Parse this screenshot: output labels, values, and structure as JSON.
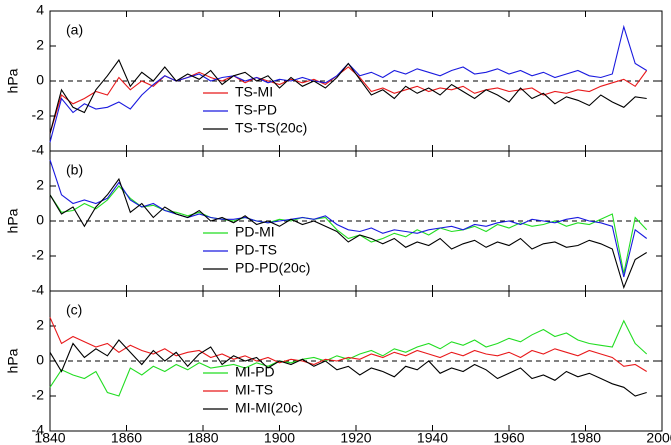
{
  "chart_data": [
    {
      "type": "line",
      "annotation": "(a)",
      "ylabel": "hPa",
      "zero_line": true,
      "x": [
        1840,
        1843,
        1846,
        1849,
        1852,
        1855,
        1858,
        1861,
        1864,
        1867,
        1870,
        1873,
        1876,
        1879,
        1882,
        1885,
        1888,
        1891,
        1894,
        1897,
        1900,
        1903,
        1906,
        1909,
        1912,
        1915,
        1918,
        1921,
        1924,
        1927,
        1930,
        1933,
        1936,
        1939,
        1942,
        1945,
        1948,
        1951,
        1954,
        1957,
        1960,
        1963,
        1966,
        1969,
        1972,
        1975,
        1978,
        1981,
        1984,
        1987,
        1990,
        1993,
        1996
      ],
      "xlim": [
        1840,
        2000
      ],
      "ylim": [
        -4,
        4
      ],
      "yticks": [
        -4,
        -2,
        0,
        2,
        4
      ],
      "series": [
        {
          "name": "TS-MI",
          "color": "#e8191b",
          "values": [
            -3,
            -0.8,
            -1.3,
            -1,
            -0.6,
            -0.8,
            0.2,
            -0.5,
            0,
            -0.3,
            0.3,
            0,
            0.2,
            0.5,
            0.2,
            0,
            0.3,
            -0.1,
            0.2,
            0,
            -0.2,
            0.1,
            -0.1,
            0.1,
            -0.2,
            0.3,
            0.8,
            0.2,
            -0.6,
            -0.4,
            -0.7,
            -0.5,
            -0.3,
            -0.6,
            -0.4,
            -0.5,
            -0.3,
            -0.7,
            -0.5,
            -0.4,
            -0.6,
            -0.5,
            -0.4,
            -0.8,
            -0.6,
            -0.7,
            -0.5,
            -0.6,
            -0.3,
            -0.1,
            0.1,
            -0.3,
            0.6
          ]
        },
        {
          "name": "TS-PD",
          "color": "#1a1adf",
          "values": [
            -3.5,
            -1,
            -1.8,
            -1.3,
            -1.6,
            -1.5,
            -1.2,
            -1.6,
            -0.8,
            -0.2,
            0.3,
            0,
            0.2,
            0.4,
            0,
            0.2,
            0.3,
            0,
            0.2,
            -0.1,
            0.1,
            0,
            0.2,
            0,
            -0.1,
            0.3,
            1,
            0.3,
            0.5,
            0.2,
            0.6,
            0.4,
            0.7,
            0.5,
            0.3,
            0.6,
            0.8,
            0.4,
            0.5,
            0.7,
            0.4,
            0.6,
            0.3,
            0.5,
            0.2,
            0.4,
            0.6,
            0.3,
            0.2,
            0.4,
            3.1,
            1,
            0.6
          ]
        },
        {
          "name": "TS-TS(20c)",
          "color": "#000000",
          "values": [
            -3,
            -0.5,
            -1.5,
            -1.8,
            -0.5,
            0.3,
            1.2,
            -0.3,
            0.5,
            0,
            0.8,
            0,
            0.4,
            0.1,
            0.6,
            -0.2,
            0.3,
            0.5,
            0,
            0.3,
            -0.4,
            0.2,
            -0.3,
            0,
            -0.4,
            0.2,
            1,
            0.1,
            -0.8,
            -0.5,
            -1,
            -0.3,
            -0.7,
            -0.4,
            -0.8,
            -0.2,
            -0.6,
            -1,
            -0.5,
            -0.8,
            -1.2,
            -0.4,
            -1,
            -0.7,
            -1.3,
            -0.9,
            -1.1,
            -1.4,
            -0.8,
            -1.2,
            -1.5,
            -0.9,
            -1
          ]
        }
      ]
    },
    {
      "type": "line",
      "annotation": "(b)",
      "ylabel": "hPa",
      "zero_line": true,
      "x": [
        1840,
        1843,
        1846,
        1849,
        1852,
        1855,
        1858,
        1861,
        1864,
        1867,
        1870,
        1873,
        1876,
        1879,
        1882,
        1885,
        1888,
        1891,
        1894,
        1897,
        1900,
        1903,
        1906,
        1909,
        1912,
        1915,
        1918,
        1921,
        1924,
        1927,
        1930,
        1933,
        1936,
        1939,
        1942,
        1945,
        1948,
        1951,
        1954,
        1957,
        1960,
        1963,
        1966,
        1969,
        1972,
        1975,
        1978,
        1981,
        1984,
        1987,
        1990,
        1993,
        1996
      ],
      "xlim": [
        1840,
        2000
      ],
      "ylim": [
        -4,
        4
      ],
      "yticks": [
        -4,
        -2,
        0,
        2
      ],
      "series": [
        {
          "name": "PD-MI",
          "color": "#22dd22",
          "values": [
            1.5,
            0.5,
            0.6,
            1,
            0.7,
            1.2,
            2,
            1.3,
            0.8,
            0.9,
            0.6,
            0.5,
            0.3,
            0.5,
            0.2,
            0.1,
            0,
            0.2,
            0,
            -0.1,
            0.1,
            0,
            0.2,
            0.1,
            0.2,
            -0.5,
            -1,
            -0.8,
            -1.2,
            -1,
            -0.7,
            -0.9,
            -0.5,
            -0.8,
            -0.4,
            -0.6,
            -0.5,
            -0.3,
            -0.6,
            -0.2,
            -0.4,
            -0.1,
            -0.3,
            -0.2,
            0,
            -0.3,
            -0.1,
            -0.2,
            0.1,
            0.4,
            -3,
            0.2,
            -0.5
          ]
        },
        {
          "name": "PD-TS",
          "color": "#1a1adf",
          "values": [
            3.5,
            1.5,
            1,
            1.2,
            1,
            1.3,
            2.2,
            1.2,
            0.8,
            1,
            0.6,
            0.4,
            0.2,
            0.4,
            0.2,
            0.1,
            0.1,
            0.2,
            0,
            -0.1,
            0,
            0.1,
            0.2,
            0.1,
            0.3,
            -0.2,
            -0.5,
            -0.6,
            -0.4,
            -0.7,
            -0.5,
            -0.6,
            -0.7,
            -0.5,
            -0.4,
            -0.3,
            -0.5,
            -0.2,
            -0.3,
            -0.1,
            0,
            -0.2,
            0.1,
            0,
            -0.1,
            0.1,
            0.2,
            0,
            -0.1,
            -0.3,
            -3.2,
            -0.5,
            -1
          ]
        },
        {
          "name": "PD-PD(20c)",
          "color": "#000000",
          "values": [
            1.5,
            0.4,
            0.8,
            -0.3,
            0.8,
            1.5,
            2.4,
            0.5,
            1,
            0.2,
            0.8,
            0.4,
            0.2,
            0.6,
            0,
            0.2,
            -0.1,
            0.3,
            -0.2,
            0,
            -0.3,
            0.1,
            -0.2,
            0,
            -0.3,
            -0.6,
            -1.2,
            -0.8,
            -1,
            -1.3,
            -1,
            -1.5,
            -1.2,
            -1.4,
            -1,
            -1.6,
            -1.3,
            -1.1,
            -1.5,
            -1.2,
            -1.4,
            -1,
            -1.6,
            -1.3,
            -1.2,
            -1.5,
            -1.4,
            -1.1,
            -1.3,
            -1.6,
            -3.8,
            -2.2,
            -1.8
          ]
        }
      ]
    },
    {
      "type": "line",
      "annotation": "(c)",
      "ylabel": "hPa",
      "zero_line": true,
      "x": [
        1840,
        1843,
        1846,
        1849,
        1852,
        1855,
        1858,
        1861,
        1864,
        1867,
        1870,
        1873,
        1876,
        1879,
        1882,
        1885,
        1888,
        1891,
        1894,
        1897,
        1900,
        1903,
        1906,
        1909,
        1912,
        1915,
        1918,
        1921,
        1924,
        1927,
        1930,
        1933,
        1936,
        1939,
        1942,
        1945,
        1948,
        1951,
        1954,
        1957,
        1960,
        1963,
        1966,
        1969,
        1972,
        1975,
        1978,
        1981,
        1984,
        1987,
        1990,
        1993,
        1996
      ],
      "xlim": [
        1840,
        2000
      ],
      "xticks": [
        1840,
        1860,
        1880,
        1900,
        1920,
        1940,
        1960,
        1980,
        2000
      ],
      "ylim": [
        -4,
        4
      ],
      "yticks": [
        -4,
        -2,
        0,
        2
      ],
      "series": [
        {
          "name": "MI-PD",
          "color": "#22dd22",
          "values": [
            -1.5,
            -0.5,
            -0.8,
            -1,
            -0.6,
            -1.8,
            -2,
            -0.4,
            -0.8,
            -0.3,
            -0.6,
            -0.2,
            -0.5,
            -0.1,
            -0.4,
            -0.3,
            -0.2,
            -0.4,
            -0.1,
            -0.3,
            0,
            -0.1,
            0.1,
            0.2,
            0,
            0.3,
            0.1,
            0.4,
            0.6,
            0.3,
            0.7,
            0.5,
            0.8,
            1,
            0.7,
            1.1,
            0.9,
            1.2,
            0.8,
            1,
            1.3,
            1.1,
            1.5,
            1.8,
            1.4,
            1.6,
            1.2,
            1,
            0.9,
            0.8,
            2.3,
            1,
            0.4
          ]
        },
        {
          "name": "MI-TS",
          "color": "#e8191b",
          "values": [
            2.5,
            1,
            1.4,
            1.1,
            0.8,
            1,
            0.5,
            0.9,
            0.6,
            0.4,
            0.7,
            0.3,
            0.5,
            0.6,
            0.2,
            0.4,
            0.1,
            0.3,
            0,
            0.2,
            -0.1,
            0.1,
            0,
            -0.2,
            0.1,
            0,
            0.2,
            0.1,
            0.4,
            0.2,
            0.5,
            0.3,
            0.6,
            0.4,
            0.2,
            0.5,
            0.3,
            0.6,
            0.4,
            0.3,
            0.5,
            0.2,
            0.6,
            0.4,
            0.7,
            0.5,
            0.3,
            0.6,
            0.4,
            0.2,
            -0.3,
            -0.2,
            -0.6
          ]
        },
        {
          "name": "MI-MI(20c)",
          "color": "#000000",
          "values": [
            0.5,
            -0.6,
            1,
            0.2,
            0.7,
            0.3,
            1.2,
            0.5,
            -0.2,
            0.6,
            0,
            0.5,
            -0.3,
            0.4,
            0.8,
            -0.2,
            0.3,
            0,
            0.2,
            -0.4,
            0,
            -0.2,
            0.1,
            -0.3,
            0,
            -0.5,
            -0.3,
            -0.8,
            -0.4,
            -0.6,
            -0.9,
            -0.3,
            -0.5,
            0,
            -0.7,
            -0.4,
            -0.6,
            -0.2,
            -0.5,
            -1,
            -0.7,
            -0.4,
            -1,
            -0.8,
            -1.1,
            -0.6,
            -0.9,
            -0.7,
            -1,
            -1.3,
            -1.5,
            -2,
            -1.8
          ]
        }
      ]
    }
  ]
}
